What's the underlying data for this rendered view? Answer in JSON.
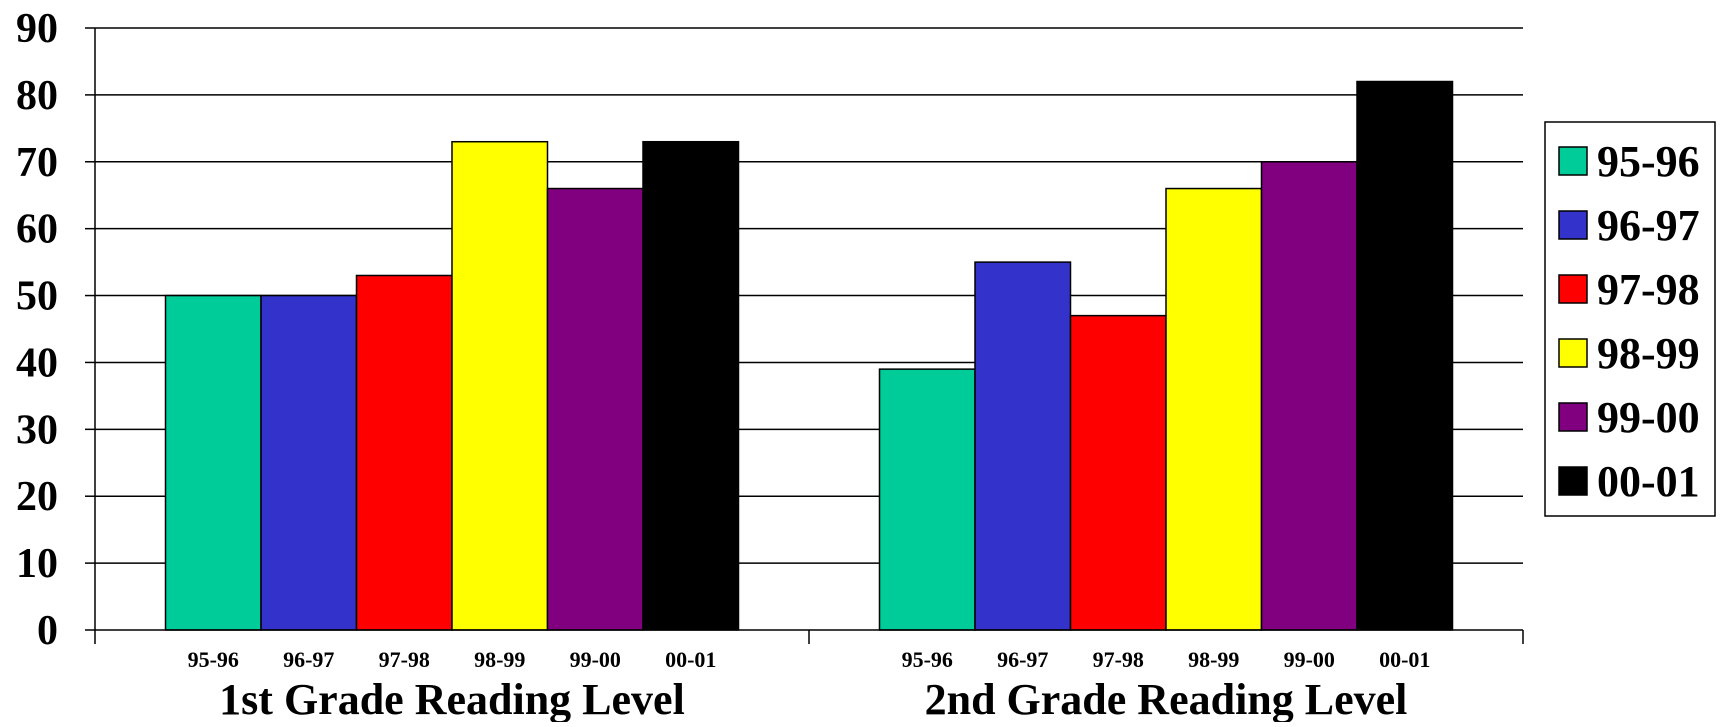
{
  "chart_data": {
    "type": "bar",
    "categories": [
      "1st Grade Reading Level",
      "2nd Grade Reading Level"
    ],
    "bar_labels": [
      "95-96",
      "96-97",
      "97-98",
      "98-99",
      "99-00",
      "00-01"
    ],
    "series": [
      {
        "name": "95-96",
        "color": "#00CC99",
        "values": [
          50,
          39
        ]
      },
      {
        "name": "96-97",
        "color": "#3333CC",
        "values": [
          50,
          55
        ]
      },
      {
        "name": "97-98",
        "color": "#FF0000",
        "values": [
          53,
          47
        ]
      },
      {
        "name": "98-99",
        "color": "#FFFF00",
        "values": [
          73,
          66
        ]
      },
      {
        "name": "99-00",
        "color": "#800080",
        "values": [
          66,
          70
        ]
      },
      {
        "name": "00-01",
        "color": "#000000",
        "values": [
          73,
          82
        ]
      }
    ],
    "yticks": [
      0,
      10,
      20,
      30,
      40,
      50,
      60,
      70,
      80,
      90
    ],
    "ylim": [
      0,
      90
    ],
    "grid": true,
    "legend": "right"
  }
}
